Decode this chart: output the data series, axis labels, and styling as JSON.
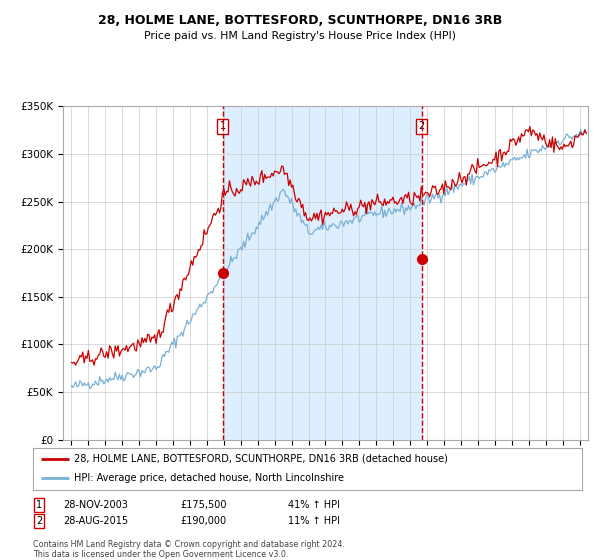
{
  "title1": "28, HOLME LANE, BOTTESFORD, SCUNTHORPE, DN16 3RB",
  "title2": "Price paid vs. HM Land Registry's House Price Index (HPI)",
  "legend_line1": "28, HOLME LANE, BOTTESFORD, SCUNTHORPE, DN16 3RB (detached house)",
  "legend_line2": "HPI: Average price, detached house, North Lincolnshire",
  "annotation1_label": "1",
  "annotation1_date": "28-NOV-2003",
  "annotation1_price": "£175,500",
  "annotation1_hpi": "41% ↑ HPI",
  "annotation2_label": "2",
  "annotation2_date": "28-AUG-2015",
  "annotation2_price": "£190,000",
  "annotation2_hpi": "11% ↑ HPI",
  "footnote": "Contains HM Land Registry data © Crown copyright and database right 2024.\nThis data is licensed under the Open Government Licence v3.0.",
  "sale1_x": 2003.92,
  "sale1_y": 175500,
  "sale2_x": 2015.67,
  "sale2_y": 190000,
  "ylim": [
    0,
    350000
  ],
  "xlim_start": 1994.5,
  "xlim_end": 2025.5,
  "red_color": "#cc0000",
  "blue_color": "#7ab0d4",
  "shading_color": "#ddeeff",
  "background_color": "#ffffff",
  "grid_color": "#cccccc"
}
